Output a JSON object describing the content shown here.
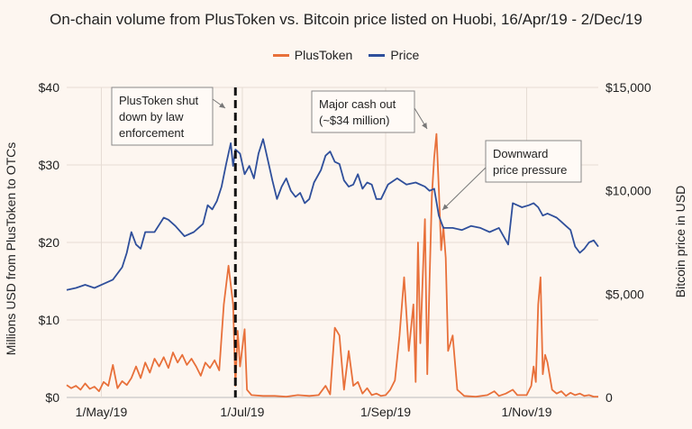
{
  "chart_data": {
    "type": "line",
    "title": "On-chain volume from PlusToken vs. Bitcoin price listed on Huobi, 16/Apr/19 - 2/Dec/19",
    "ylabel_left": "Millions USD from PlusToken to OTCs",
    "ylabel_right": "Bitcoin price in USD",
    "xlim": [
      "2019-04-16",
      "2019-12-02"
    ],
    "ylim_left": [
      0,
      40
    ],
    "ylim_right": [
      0,
      15000
    ],
    "yticks_left": [
      "$0",
      "$10",
      "$20",
      "$30",
      "$40"
    ],
    "yticks_right": [
      "0",
      "$5,000",
      "$10,000",
      "$15,000"
    ],
    "xticks": [
      {
        "date": "2019-05-01",
        "label": "1/May/19"
      },
      {
        "date": "2019-07-01",
        "label": "1/Jul/19"
      },
      {
        "date": "2019-09-01",
        "label": "1/Sep/19"
      },
      {
        "date": "2019-11-01",
        "label": "1/Nov/19"
      }
    ],
    "grid": true,
    "legend_position": "top-center",
    "series": [
      {
        "name": "PlusToken",
        "axis": "left",
        "color": "#e8703a",
        "points": [
          [
            "2019-04-16",
            1.6
          ],
          [
            "2019-04-18",
            1.2
          ],
          [
            "2019-04-20",
            1.5
          ],
          [
            "2019-04-22",
            1.0
          ],
          [
            "2019-04-24",
            1.8
          ],
          [
            "2019-04-26",
            1.1
          ],
          [
            "2019-04-28",
            1.4
          ],
          [
            "2019-04-30",
            0.8
          ],
          [
            "2019-05-02",
            2.0
          ],
          [
            "2019-05-04",
            1.5
          ],
          [
            "2019-05-06",
            4.2
          ],
          [
            "2019-05-08",
            1.2
          ],
          [
            "2019-05-10",
            2.1
          ],
          [
            "2019-05-12",
            1.6
          ],
          [
            "2019-05-14",
            2.5
          ],
          [
            "2019-05-16",
            4.0
          ],
          [
            "2019-05-18",
            2.5
          ],
          [
            "2019-05-20",
            4.5
          ],
          [
            "2019-05-22",
            3.2
          ],
          [
            "2019-05-24",
            5.0
          ],
          [
            "2019-05-26",
            4.0
          ],
          [
            "2019-05-28",
            5.2
          ],
          [
            "2019-05-30",
            3.8
          ],
          [
            "2019-06-01",
            5.8
          ],
          [
            "2019-06-03",
            4.5
          ],
          [
            "2019-06-05",
            5.5
          ],
          [
            "2019-06-07",
            4.2
          ],
          [
            "2019-06-09",
            5.0
          ],
          [
            "2019-06-11",
            4.0
          ],
          [
            "2019-06-13",
            2.8
          ],
          [
            "2019-06-15",
            4.5
          ],
          [
            "2019-06-17",
            3.8
          ],
          [
            "2019-06-19",
            4.8
          ],
          [
            "2019-06-21",
            3.5
          ],
          [
            "2019-06-23",
            12.0
          ],
          [
            "2019-06-25",
            17.0
          ],
          [
            "2019-06-27",
            12.0
          ],
          [
            "2019-06-28",
            1.5
          ],
          [
            "2019-06-29",
            8.6
          ],
          [
            "2019-06-30",
            4.0
          ],
          [
            "2019-07-02",
            8.8
          ],
          [
            "2019-07-03",
            1.0
          ],
          [
            "2019-07-05",
            0.3
          ],
          [
            "2019-07-10",
            0.2
          ],
          [
            "2019-07-15",
            0.2
          ],
          [
            "2019-07-20",
            0.1
          ],
          [
            "2019-07-25",
            0.3
          ],
          [
            "2019-07-30",
            0.2
          ],
          [
            "2019-08-03",
            0.3
          ],
          [
            "2019-08-06",
            1.5
          ],
          [
            "2019-08-08",
            0.4
          ],
          [
            "2019-08-10",
            9.0
          ],
          [
            "2019-08-12",
            8.0
          ],
          [
            "2019-08-14",
            1.0
          ],
          [
            "2019-08-16",
            6.0
          ],
          [
            "2019-08-18",
            1.5
          ],
          [
            "2019-08-20",
            2.0
          ],
          [
            "2019-08-22",
            0.5
          ],
          [
            "2019-08-24",
            1.2
          ],
          [
            "2019-08-26",
            0.3
          ],
          [
            "2019-08-28",
            0.5
          ],
          [
            "2019-08-30",
            0.2
          ],
          [
            "2019-09-01",
            0.3
          ],
          [
            "2019-09-03",
            1.0
          ],
          [
            "2019-09-05",
            2.2
          ],
          [
            "2019-09-07",
            8.0
          ],
          [
            "2019-09-09",
            15.5
          ],
          [
            "2019-09-11",
            6.0
          ],
          [
            "2019-09-13",
            12.0
          ],
          [
            "2019-09-14",
            2.0
          ],
          [
            "2019-09-15",
            20.0
          ],
          [
            "2019-09-16",
            7.0
          ],
          [
            "2019-09-17",
            15.0
          ],
          [
            "2019-09-18",
            23.0
          ],
          [
            "2019-09-19",
            3.0
          ],
          [
            "2019-09-20",
            15.0
          ],
          [
            "2019-09-21",
            26.0
          ],
          [
            "2019-09-22",
            31.0
          ],
          [
            "2019-09-23",
            34.0
          ],
          [
            "2019-09-24",
            27.0
          ],
          [
            "2019-09-25",
            19.0
          ],
          [
            "2019-09-26",
            22.0
          ],
          [
            "2019-09-27",
            18.0
          ],
          [
            "2019-09-28",
            6.0
          ],
          [
            "2019-09-30",
            8.0
          ],
          [
            "2019-10-02",
            1.0
          ],
          [
            "2019-10-05",
            0.2
          ],
          [
            "2019-10-10",
            0.1
          ],
          [
            "2019-10-15",
            0.3
          ],
          [
            "2019-10-18",
            0.8
          ],
          [
            "2019-10-20",
            0.2
          ],
          [
            "2019-10-23",
            0.5
          ],
          [
            "2019-10-26",
            1.0
          ],
          [
            "2019-10-28",
            0.3
          ],
          [
            "2019-11-01",
            0.3
          ],
          [
            "2019-11-03",
            1.5
          ],
          [
            "2019-11-04",
            4.0
          ],
          [
            "2019-11-05",
            2.0
          ],
          [
            "2019-11-06",
            12.0
          ],
          [
            "2019-11-07",
            15.5
          ],
          [
            "2019-11-08",
            3.0
          ],
          [
            "2019-11-09",
            5.5
          ],
          [
            "2019-11-10",
            4.5
          ],
          [
            "2019-11-12",
            1.0
          ],
          [
            "2019-11-14",
            0.5
          ],
          [
            "2019-11-16",
            0.8
          ],
          [
            "2019-11-18",
            0.2
          ],
          [
            "2019-11-20",
            0.6
          ],
          [
            "2019-11-22",
            0.3
          ],
          [
            "2019-11-24",
            0.5
          ],
          [
            "2019-11-26",
            0.2
          ],
          [
            "2019-11-28",
            0.3
          ],
          [
            "2019-11-30",
            0.1
          ],
          [
            "2019-12-02",
            0.1
          ]
        ]
      },
      {
        "name": "Price",
        "axis": "right",
        "color": "#2f4f9b",
        "points": [
          [
            "2019-04-16",
            5200
          ],
          [
            "2019-04-20",
            5300
          ],
          [
            "2019-04-24",
            5450
          ],
          [
            "2019-04-28",
            5300
          ],
          [
            "2019-05-02",
            5500
          ],
          [
            "2019-05-06",
            5700
          ],
          [
            "2019-05-10",
            6300
          ],
          [
            "2019-05-12",
            7000
          ],
          [
            "2019-05-14",
            8000
          ],
          [
            "2019-05-16",
            7400
          ],
          [
            "2019-05-18",
            7200
          ],
          [
            "2019-05-20",
            8000
          ],
          [
            "2019-05-24",
            8000
          ],
          [
            "2019-05-28",
            8700
          ],
          [
            "2019-05-30",
            8600
          ],
          [
            "2019-06-02",
            8300
          ],
          [
            "2019-06-06",
            7800
          ],
          [
            "2019-06-10",
            8000
          ],
          [
            "2019-06-14",
            8400
          ],
          [
            "2019-06-16",
            9300
          ],
          [
            "2019-06-18",
            9100
          ],
          [
            "2019-06-20",
            9500
          ],
          [
            "2019-06-22",
            10200
          ],
          [
            "2019-06-24",
            11300
          ],
          [
            "2019-06-26",
            12300
          ],
          [
            "2019-06-27",
            11200
          ],
          [
            "2019-06-28",
            12000
          ],
          [
            "2019-06-30",
            11800
          ],
          [
            "2019-07-02",
            10800
          ],
          [
            "2019-07-04",
            11200
          ],
          [
            "2019-07-06",
            10600
          ],
          [
            "2019-07-08",
            11800
          ],
          [
            "2019-07-10",
            12500
          ],
          [
            "2019-07-12",
            11500
          ],
          [
            "2019-07-14",
            10500
          ],
          [
            "2019-07-16",
            9600
          ],
          [
            "2019-07-18",
            10200
          ],
          [
            "2019-07-20",
            10600
          ],
          [
            "2019-07-22",
            10000
          ],
          [
            "2019-07-24",
            9700
          ],
          [
            "2019-07-26",
            9900
          ],
          [
            "2019-07-28",
            9400
          ],
          [
            "2019-07-30",
            9600
          ],
          [
            "2019-08-01",
            10400
          ],
          [
            "2019-08-04",
            11000
          ],
          [
            "2019-08-06",
            11700
          ],
          [
            "2019-08-08",
            11900
          ],
          [
            "2019-08-10",
            11400
          ],
          [
            "2019-08-12",
            11300
          ],
          [
            "2019-08-14",
            10500
          ],
          [
            "2019-08-16",
            10200
          ],
          [
            "2019-08-18",
            10300
          ],
          [
            "2019-08-20",
            10800
          ],
          [
            "2019-08-22",
            10100
          ],
          [
            "2019-08-24",
            10400
          ],
          [
            "2019-08-26",
            10300
          ],
          [
            "2019-08-28",
            9600
          ],
          [
            "2019-08-30",
            9600
          ],
          [
            "2019-09-02",
            10300
          ],
          [
            "2019-09-06",
            10600
          ],
          [
            "2019-09-10",
            10300
          ],
          [
            "2019-09-14",
            10400
          ],
          [
            "2019-09-18",
            10200
          ],
          [
            "2019-09-20",
            10000
          ],
          [
            "2019-09-22",
            10100
          ],
          [
            "2019-09-24",
            8800
          ],
          [
            "2019-09-26",
            8200
          ],
          [
            "2019-09-30",
            8200
          ],
          [
            "2019-10-04",
            8100
          ],
          [
            "2019-10-08",
            8300
          ],
          [
            "2019-10-12",
            8200
          ],
          [
            "2019-10-16",
            8000
          ],
          [
            "2019-10-20",
            8200
          ],
          [
            "2019-10-24",
            7400
          ],
          [
            "2019-10-26",
            9400
          ],
          [
            "2019-10-28",
            9300
          ],
          [
            "2019-10-30",
            9200
          ],
          [
            "2019-11-02",
            9300
          ],
          [
            "2019-11-04",
            9400
          ],
          [
            "2019-11-06",
            9200
          ],
          [
            "2019-11-08",
            8800
          ],
          [
            "2019-11-10",
            8900
          ],
          [
            "2019-11-12",
            8800
          ],
          [
            "2019-11-14",
            8700
          ],
          [
            "2019-11-16",
            8500
          ],
          [
            "2019-11-18",
            8300
          ],
          [
            "2019-11-20",
            8100
          ],
          [
            "2019-11-22",
            7300
          ],
          [
            "2019-11-24",
            7000
          ],
          [
            "2019-11-26",
            7200
          ],
          [
            "2019-11-28",
            7500
          ],
          [
            "2019-11-30",
            7600
          ],
          [
            "2019-12-02",
            7300
          ]
        ]
      }
    ],
    "annotations": [
      {
        "id": "shutdown",
        "text": [
          "PlusToken shut",
          "down by law",
          "enforcement"
        ],
        "date": "2019-06-28"
      },
      {
        "id": "cashout",
        "text": [
          "Major cash out",
          "(~$34 million)"
        ]
      },
      {
        "id": "downward",
        "text": [
          "Downward",
          "price pressure"
        ]
      }
    ]
  }
}
